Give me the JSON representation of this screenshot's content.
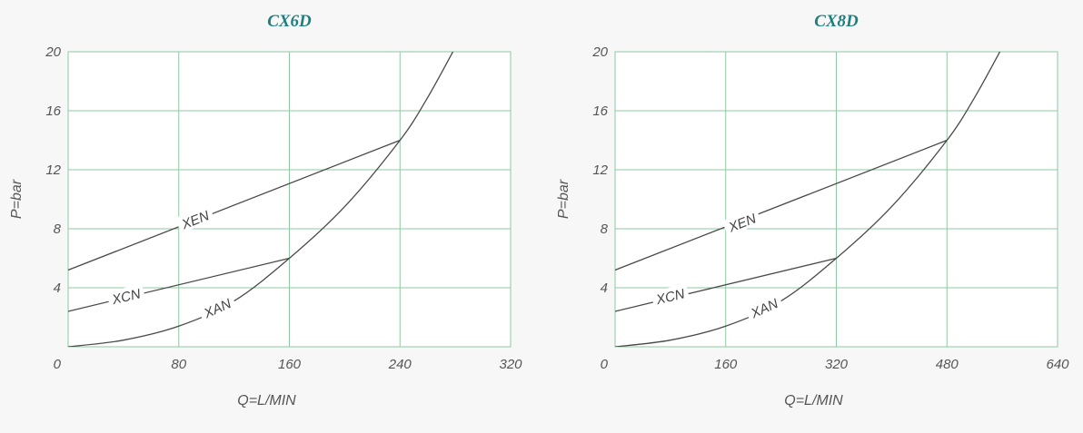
{
  "colors": {
    "title": "#1e7f80",
    "grid": "#8fc9a3",
    "curve": "#4a4a4a",
    "text": "#555555",
    "plot_background": "#ffffff",
    "page_background": "#f6f7f6"
  },
  "chart_data": [
    {
      "type": "line",
      "title": "CX6D",
      "xlabel": "Q=L/MIN",
      "ylabel": "P=bar",
      "xlim": [
        0,
        320
      ],
      "ylim": [
        0,
        20
      ],
      "xticks": [
        "0",
        "80",
        "160",
        "240",
        "320"
      ],
      "yticks": [
        "4",
        "8",
        "12",
        "16",
        "20"
      ],
      "grid": true,
      "series": [
        {
          "name": "XEN",
          "points": [
            [
              0,
              5.2
            ],
            [
              240,
              14
            ]
          ],
          "label_at": [
            92,
            8.6
          ]
        },
        {
          "name": "XCN",
          "points": [
            [
              0,
              2.4
            ],
            [
              160,
              6
            ]
          ],
          "label_at": [
            42,
            3.4
          ]
        },
        {
          "name": "XAN",
          "points": [
            [
              0,
              0
            ],
            [
              40,
              0.45
            ],
            [
              80,
              1.4
            ],
            [
              120,
              3.1
            ],
            [
              160,
              6
            ],
            [
              200,
              9.5
            ],
            [
              240,
              14
            ],
            [
              260,
              16.9
            ],
            [
              280,
              20.3
            ]
          ],
          "label_at": [
            108,
            2.6
          ]
        }
      ]
    },
    {
      "type": "line",
      "title": "CX8D",
      "xlabel": "Q=L/MIN",
      "ylabel": "P=bar",
      "xlim": [
        0,
        640
      ],
      "ylim": [
        0,
        20
      ],
      "xticks": [
        "0",
        "160",
        "320",
        "480",
        "640"
      ],
      "yticks": [
        "4",
        "8",
        "12",
        "16",
        "20"
      ],
      "grid": true,
      "series": [
        {
          "name": "XEN",
          "points": [
            [
              0,
              5.2
            ],
            [
              480,
              14
            ]
          ],
          "label_at": [
            184,
            8.4
          ]
        },
        {
          "name": "XCN",
          "points": [
            [
              0,
              2.4
            ],
            [
              320,
              6
            ]
          ],
          "label_at": [
            80,
            3.4
          ]
        },
        {
          "name": "XAN",
          "points": [
            [
              0,
              0
            ],
            [
              80,
              0.45
            ],
            [
              160,
              1.4
            ],
            [
              240,
              3.1
            ],
            [
              320,
              6
            ],
            [
              400,
              9.5
            ],
            [
              480,
              14
            ],
            [
              520,
              16.9
            ],
            [
              560,
              20.3
            ]
          ],
          "label_at": [
            216,
            2.6
          ]
        }
      ]
    }
  ]
}
